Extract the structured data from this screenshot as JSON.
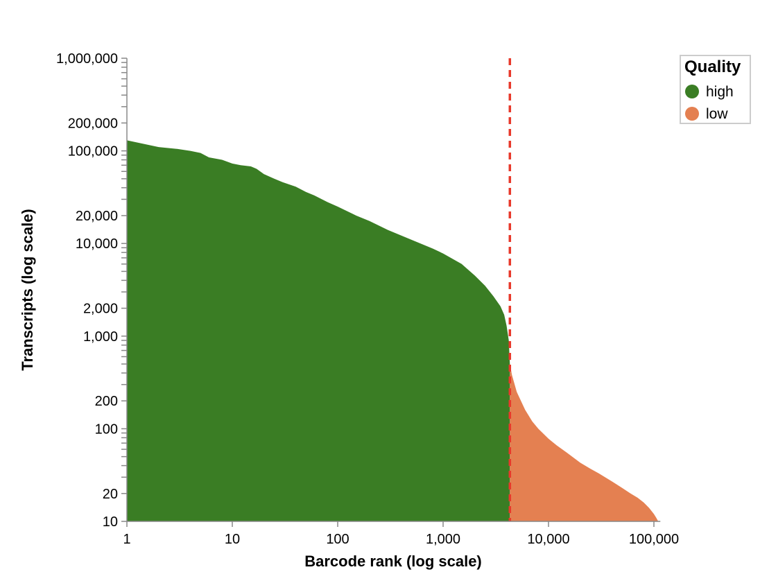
{
  "chart_data": {
    "type": "area",
    "title": "",
    "xlabel": "Barcode rank (log scale)",
    "ylabel": "Transcripts (log scale)",
    "x_scale": "log",
    "y_scale": "log",
    "xlim": [
      1,
      110000
    ],
    "ylim": [
      10,
      1000000
    ],
    "x_tick_labels": [
      {
        "value": 1,
        "label": "1"
      },
      {
        "value": 10,
        "label": "10"
      },
      {
        "value": 100,
        "label": "100"
      },
      {
        "value": 1000,
        "label": "1,000"
      },
      {
        "value": 10000,
        "label": "10,000"
      },
      {
        "value": 100000,
        "label": "100,000"
      }
    ],
    "y_tick_labels": [
      {
        "value": 10,
        "label": "10"
      },
      {
        "value": 20,
        "label": "20"
      },
      {
        "value": 100,
        "label": "100"
      },
      {
        "value": 200,
        "label": "200"
      },
      {
        "value": 1000,
        "label": "1,000"
      },
      {
        "value": 2000,
        "label": "2,000"
      },
      {
        "value": 10000,
        "label": "10,000"
      },
      {
        "value": 20000,
        "label": "20,000"
      },
      {
        "value": 100000,
        "label": "100,000"
      },
      {
        "value": 200000,
        "label": "200,000"
      },
      {
        "value": 1000000,
        "label": "1,000,000"
      }
    ],
    "grid": false,
    "legend": {
      "title": "Quality",
      "placement": "top-right",
      "entries": [
        {
          "label": "high",
          "color": "#3a7d24"
        },
        {
          "label": "low",
          "color": "#e48051"
        }
      ]
    },
    "threshold": {
      "x": 4300,
      "color": "#e8392b",
      "style": "dashed"
    },
    "series": [
      {
        "name": "high",
        "color": "#3a7d24",
        "x": [
          1,
          2,
          3,
          4,
          5,
          6,
          8,
          10,
          12,
          15,
          17,
          20,
          25,
          30,
          40,
          50,
          60,
          80,
          100,
          150,
          200,
          300,
          500,
          800,
          1000,
          1500,
          2000,
          2500,
          3000,
          3500,
          3800,
          4000,
          4200,
          4300
        ],
        "y": [
          130000,
          110000,
          105000,
          100000,
          95000,
          85000,
          80000,
          73000,
          70000,
          68000,
          64000,
          56000,
          50000,
          46000,
          41000,
          36000,
          33000,
          28000,
          25000,
          20000,
          17500,
          14000,
          11000,
          8800,
          7800,
          6000,
          4500,
          3500,
          2700,
          2100,
          1700,
          1300,
          900,
          500
        ]
      },
      {
        "name": "low",
        "color": "#e48051",
        "x": [
          4300,
          4500,
          5000,
          6000,
          7000,
          8000,
          10000,
          12000,
          15000,
          20000,
          25000,
          30000,
          40000,
          50000,
          60000,
          70000,
          80000,
          90000,
          100000,
          105000,
          110000
        ],
        "y": [
          500,
          380,
          250,
          160,
          120,
          100,
          78,
          66,
          55,
          43,
          37,
          33,
          27,
          23,
          20,
          18,
          16,
          14,
          12,
          11,
          10
        ]
      }
    ]
  }
}
